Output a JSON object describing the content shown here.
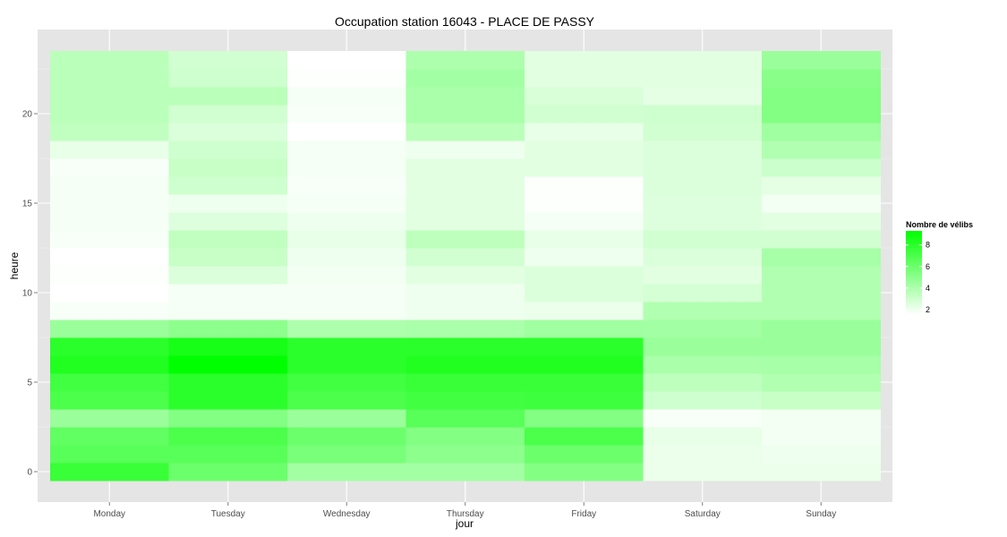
{
  "chart_data": {
    "type": "heatmap",
    "title": "Occupation station 16043 - PLACE DE PASSY",
    "xlabel": "jour",
    "ylabel": "heure",
    "x_categories": [
      "Monday",
      "Tuesday",
      "Wednesday",
      "Thursday",
      "Friday",
      "Saturday",
      "Sunday"
    ],
    "y_range": [
      0,
      23
    ],
    "y_ticks": [
      0,
      5,
      10,
      15,
      20
    ],
    "grid": true,
    "legend": {
      "title": "Nombre de vélibs",
      "placement": "right",
      "min": 1.5,
      "max": 9.3,
      "ticks": [
        2,
        4,
        6,
        8
      ],
      "color_low": "#ffffff",
      "color_high": "#00ff00"
    },
    "colors": {
      "panel_background": "#e5e5e5",
      "grid_line": "#ffffff"
    },
    "values": [
      [
        7.6,
        6.0,
        4.3,
        4.3,
        5.3,
        2.1,
        2.1
      ],
      [
        6.6,
        6.6,
        5.6,
        5.0,
        6.0,
        2.1,
        2.0
      ],
      [
        6.3,
        7.0,
        6.0,
        5.3,
        7.0,
        2.2,
        1.9
      ],
      [
        4.6,
        5.3,
        4.6,
        6.6,
        5.3,
        1.7,
        1.9
      ],
      [
        7.0,
        8.0,
        7.0,
        7.3,
        7.4,
        3.0,
        3.2
      ],
      [
        7.3,
        8.0,
        7.3,
        7.6,
        7.6,
        3.5,
        3.9
      ],
      [
        8.3,
        9.3,
        8.0,
        8.3,
        8.3,
        4.1,
        4.2
      ],
      [
        8.0,
        8.6,
        8.0,
        8.0,
        8.0,
        4.6,
        4.6
      ],
      [
        4.6,
        5.0,
        4.0,
        4.1,
        4.4,
        4.3,
        4.6
      ],
      [
        1.7,
        1.8,
        1.8,
        2.0,
        2.1,
        3.9,
        3.9
      ],
      [
        1.5,
        1.8,
        1.8,
        2.0,
        2.6,
        2.8,
        3.9
      ],
      [
        1.6,
        2.6,
        1.9,
        2.4,
        2.6,
        2.4,
        3.9
      ],
      [
        1.5,
        3.2,
        2.0,
        2.9,
        2.0,
        2.6,
        4.2
      ],
      [
        1.7,
        3.4,
        2.2,
        3.5,
        2.2,
        2.9,
        2.9
      ],
      [
        1.8,
        2.5,
        2.0,
        2.4,
        1.8,
        2.5,
        2.4
      ],
      [
        1.8,
        2.0,
        1.8,
        2.4,
        1.6,
        2.5,
        1.9
      ],
      [
        1.8,
        3.0,
        1.7,
        2.4,
        1.6,
        2.6,
        2.3
      ],
      [
        1.7,
        3.2,
        1.8,
        2.4,
        2.4,
        2.6,
        3.1
      ],
      [
        2.2,
        3.0,
        1.8,
        2.0,
        2.4,
        2.6,
        3.9
      ],
      [
        3.4,
        2.6,
        1.5,
        3.6,
        2.2,
        2.9,
        4.4
      ],
      [
        3.6,
        2.9,
        1.7,
        4.1,
        2.9,
        3.0,
        5.3
      ],
      [
        3.6,
        3.6,
        1.8,
        4.1,
        2.7,
        2.3,
        5.3
      ],
      [
        3.6,
        3.0,
        1.6,
        4.3,
        2.4,
        2.4,
        5.1
      ],
      [
        3.6,
        2.9,
        1.5,
        4.0,
        2.4,
        2.4,
        4.6
      ]
    ]
  }
}
